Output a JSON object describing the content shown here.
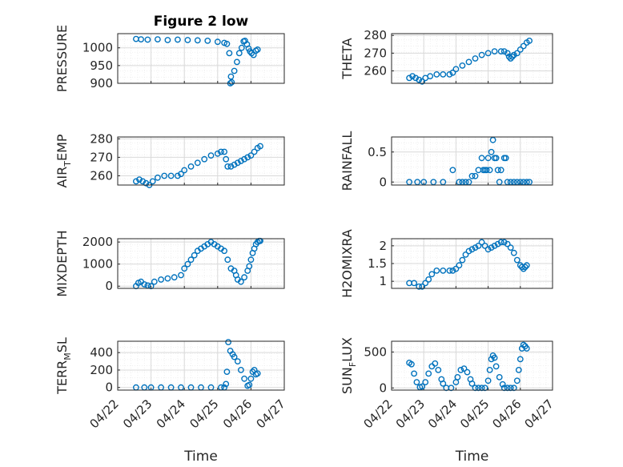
{
  "figure_title": "Figure 2 low",
  "colors": {
    "marker": "#0072BD",
    "axis": "#262626",
    "grid": "#d9d9d9",
    "minor_grid": "#ececec"
  },
  "chart_data": [
    {
      "type": "scatter",
      "ylabel": "PRESSURE",
      "ylabel_sub": "",
      "ylabel_tail": "",
      "ylim": [
        900,
        1040
      ],
      "yticks": [
        900,
        950,
        1000
      ],
      "xlim": [
        "04/22",
        "04/27"
      ],
      "xticks": [
        "04/22",
        "04/23",
        "04/24",
        "04/25",
        "04/26",
        "04/27"
      ],
      "xticklabels_shown": false,
      "xlabel": "",
      "grid": true,
      "marker": "circle",
      "series": [
        {
          "x": [
            0.55,
            0.7,
            0.9,
            1.2,
            1.5,
            1.8,
            2.1,
            2.4,
            2.7,
            3.0,
            3.2,
            3.28,
            3.35,
            3.38,
            3.4,
            3.42,
            3.5,
            3.58,
            3.65,
            3.72,
            3.78,
            3.82,
            3.88,
            3.93,
            3.97,
            4.02,
            4.08,
            4.15,
            4.2
          ],
          "y": [
            1025,
            1024,
            1023,
            1024,
            1022,
            1023,
            1022,
            1021,
            1020,
            1017,
            1014,
            1011,
            985,
            900,
            919,
            903,
            935,
            960,
            985,
            1000,
            1018,
            1020,
            1010,
            998,
            990,
            985,
            980,
            992,
            995
          ]
        }
      ]
    },
    {
      "type": "scatter",
      "ylabel": "THETA",
      "ylabel_sub": "",
      "ylabel_tail": "",
      "ylim": [
        253,
        281
      ],
      "yticks": [
        260,
        270,
        280
      ],
      "xlim": [
        "04/22",
        "04/27"
      ],
      "xticks": [
        "04/22",
        "04/23",
        "04/24",
        "04/25",
        "04/26",
        "04/27"
      ],
      "xticklabels_shown": false,
      "xlabel": "",
      "grid": true,
      "marker": "circle",
      "series": [
        {
          "x": [
            0.55,
            0.65,
            0.75,
            0.85,
            0.95,
            1.05,
            1.2,
            1.4,
            1.6,
            1.8,
            1.9,
            2.0,
            2.2,
            2.4,
            2.6,
            2.8,
            3.0,
            3.2,
            3.4,
            3.5,
            3.6,
            3.65,
            3.7,
            3.75,
            3.8,
            3.9,
            4.0,
            4.1,
            4.2,
            4.28
          ],
          "y": [
            256,
            257,
            256,
            255,
            254,
            256,
            257,
            258,
            258,
            258,
            259,
            261,
            263,
            265,
            267,
            269,
            270,
            271,
            271,
            271,
            270,
            268,
            267,
            268,
            269,
            270,
            272,
            274,
            276,
            277
          ]
        }
      ]
    },
    {
      "type": "scatter",
      "ylabel": "AIR",
      "ylabel_sub": "T",
      "ylabel_tail": "EMP",
      "ylim": [
        255,
        281
      ],
      "yticks": [
        260,
        270,
        280
      ],
      "xlim": [
        "04/22",
        "04/27"
      ],
      "xticks": [
        "04/22",
        "04/23",
        "04/24",
        "04/25",
        "04/26",
        "04/27"
      ],
      "xticklabels_shown": false,
      "xlabel": "",
      "grid": true,
      "marker": "circle",
      "series": [
        {
          "x": [
            0.55,
            0.65,
            0.75,
            0.85,
            0.95,
            1.05,
            1.2,
            1.4,
            1.6,
            1.8,
            1.9,
            2.0,
            2.2,
            2.4,
            2.6,
            2.8,
            3.0,
            3.1,
            3.2,
            3.25,
            3.3,
            3.4,
            3.5,
            3.6,
            3.7,
            3.8,
            3.9,
            4.0,
            4.1,
            4.2,
            4.28
          ],
          "y": [
            257,
            258,
            257,
            256,
            255,
            257,
            259,
            260,
            260,
            260,
            261,
            263,
            265,
            267,
            269,
            271,
            272,
            273,
            273,
            269,
            265,
            265,
            266,
            267,
            268,
            269,
            270,
            271,
            273,
            275,
            276
          ]
        }
      ]
    },
    {
      "type": "scatter",
      "ylabel": "RAINFALL",
      "ylabel_sub": "",
      "ylabel_tail": "",
      "ylim": [
        -0.05,
        0.75
      ],
      "yticks": [
        0,
        0.5
      ],
      "xlim": [
        "04/22",
        "04/27"
      ],
      "xticks": [
        "04/22",
        "04/23",
        "04/24",
        "04/25",
        "04/26",
        "04/27"
      ],
      "xticklabels_shown": false,
      "xlabel": "",
      "grid": true,
      "marker": "circle",
      "series": [
        {
          "x": [
            0.55,
            0.8,
            1.0,
            1.3,
            1.6,
            1.9,
            2.1,
            2.2,
            2.3,
            2.4,
            2.5,
            2.6,
            2.7,
            2.8,
            2.85,
            2.9,
            2.95,
            3.0,
            3.05,
            3.1,
            3.15,
            3.2,
            3.25,
            3.3,
            3.35,
            3.4,
            3.5,
            3.55,
            3.6,
            3.7,
            3.8,
            3.9,
            4.0,
            4.1,
            4.2,
            4.28
          ],
          "y": [
            0,
            0,
            0,
            0,
            0,
            0.2,
            0,
            0,
            0,
            0,
            0.1,
            0.1,
            0.2,
            0.4,
            0.2,
            0.2,
            0.2,
            0.4,
            0.2,
            0.5,
            0.7,
            0.4,
            0.4,
            0.2,
            0,
            0.2,
            0.4,
            0.4,
            0,
            0,
            0,
            0,
            0,
            0,
            0,
            0
          ]
        }
      ]
    },
    {
      "type": "scatter",
      "ylabel": "MIXDEPTH",
      "ylabel_sub": "",
      "ylabel_tail": "",
      "ylim": [
        -100,
        2150
      ],
      "yticks": [
        0,
        1000,
        2000
      ],
      "xlim": [
        "04/22",
        "04/27"
      ],
      "xticks": [
        "04/22",
        "04/23",
        "04/24",
        "04/25",
        "04/26",
        "04/27"
      ],
      "xticklabels_shown": false,
      "xlabel": "",
      "grid": true,
      "marker": "circle",
      "series": [
        {
          "x": [
            0.55,
            0.62,
            0.7,
            0.8,
            0.9,
            1.0,
            1.1,
            1.3,
            1.5,
            1.7,
            1.9,
            2.0,
            2.1,
            2.2,
            2.3,
            2.4,
            2.5,
            2.6,
            2.7,
            2.8,
            2.9,
            3.0,
            3.1,
            3.2,
            3.3,
            3.4,
            3.5,
            3.55,
            3.6,
            3.7,
            3.8,
            3.9,
            3.95,
            4.0,
            4.05,
            4.1,
            4.15,
            4.2,
            4.25,
            4.28
          ],
          "y": [
            0,
            150,
            200,
            80,
            30,
            0,
            200,
            300,
            350,
            400,
            500,
            800,
            1000,
            1200,
            1400,
            1600,
            1700,
            1800,
            1900,
            2000,
            1900,
            1800,
            1700,
            1600,
            1200,
            800,
            700,
            500,
            300,
            200,
            400,
            700,
            900,
            1200,
            1500,
            1700,
            1900,
            2000,
            2050,
            2050
          ]
        }
      ]
    },
    {
      "type": "scatter",
      "ylabel": "H2OMIXRA",
      "ylabel_sub": "",
      "ylabel_tail": "",
      "ylim": [
        0.8,
        2.2
      ],
      "yticks": [
        1,
        1.5,
        2
      ],
      "xlim": [
        "04/22",
        "04/27"
      ],
      "xticks": [
        "04/22",
        "04/23",
        "04/24",
        "04/25",
        "04/26",
        "04/27"
      ],
      "xticklabels_shown": false,
      "xlabel": "",
      "grid": true,
      "marker": "circle",
      "series": [
        {
          "x": [
            0.55,
            0.7,
            0.85,
            0.95,
            1.05,
            1.15,
            1.25,
            1.4,
            1.6,
            1.8,
            1.9,
            2.0,
            2.1,
            2.2,
            2.3,
            2.4,
            2.5,
            2.6,
            2.7,
            2.8,
            2.9,
            3.0,
            3.1,
            3.2,
            3.3,
            3.4,
            3.5,
            3.6,
            3.7,
            3.8,
            3.9,
            4.0,
            4.05,
            4.1,
            4.15,
            4.2
          ],
          "y": [
            0.95,
            0.95,
            0.85,
            0.85,
            0.95,
            1.05,
            1.2,
            1.3,
            1.3,
            1.3,
            1.3,
            1.35,
            1.45,
            1.6,
            1.75,
            1.85,
            1.9,
            1.95,
            2.0,
            2.1,
            2.0,
            1.9,
            1.95,
            2.0,
            2.05,
            2.1,
            2.1,
            2.05,
            1.95,
            1.8,
            1.6,
            1.45,
            1.4,
            1.35,
            1.4,
            1.45
          ]
        }
      ]
    },
    {
      "type": "scatter",
      "ylabel": "TERR",
      "ylabel_sub": "M",
      "ylabel_tail": "SL",
      "ylim": [
        -30,
        530
      ],
      "yticks": [
        0,
        200,
        400
      ],
      "xlim": [
        "04/22",
        "04/27"
      ],
      "xticks": [
        "04/22",
        "04/23",
        "04/24",
        "04/25",
        "04/26",
        "04/27"
      ],
      "xticklabels_shown": true,
      "xlabel": "Time",
      "grid": true,
      "marker": "circle",
      "series": [
        {
          "x": [
            0.55,
            0.8,
            1.0,
            1.3,
            1.6,
            1.9,
            2.2,
            2.5,
            2.8,
            3.1,
            3.2,
            3.25,
            3.28,
            3.32,
            3.38,
            3.45,
            3.5,
            3.6,
            3.7,
            3.8,
            3.9,
            3.95,
            4.0,
            4.05,
            4.1,
            4.15,
            4.2
          ],
          "y": [
            0,
            0,
            0,
            0,
            0,
            0,
            0,
            0,
            0,
            0,
            0,
            40,
            180,
            520,
            420,
            380,
            350,
            300,
            200,
            100,
            20,
            30,
            100,
            180,
            200,
            150,
            160
          ]
        }
      ]
    },
    {
      "type": "scatter",
      "ylabel": "SUN",
      "ylabel_sub": "F",
      "ylabel_tail": "LUX",
      "ylim": [
        -30,
        650
      ],
      "yticks": [
        0,
        500
      ],
      "xlim": [
        "04/22",
        "04/27"
      ],
      "xticks": [
        "04/22",
        "04/23",
        "04/24",
        "04/25",
        "04/26",
        "04/27"
      ],
      "xticklabels_shown": true,
      "xlabel": "Time",
      "grid": true,
      "marker": "circle",
      "series": [
        {
          "x": [
            0.55,
            0.62,
            0.7,
            0.78,
            0.88,
            0.95,
            1.05,
            1.15,
            1.25,
            1.35,
            1.45,
            1.55,
            1.6,
            1.7,
            1.85,
            2.0,
            2.05,
            2.15,
            2.25,
            2.35,
            2.45,
            2.5,
            2.6,
            2.7,
            2.8,
            2.9,
            3.0,
            3.05,
            3.1,
            3.15,
            3.2,
            3.25,
            3.35,
            3.45,
            3.5,
            3.6,
            3.7,
            3.8,
            3.9,
            3.95,
            4.0,
            4.05,
            4.1,
            4.15,
            4.2
          ],
          "y": [
            350,
            330,
            200,
            80,
            10,
            20,
            80,
            200,
            300,
            340,
            250,
            120,
            60,
            0,
            0,
            80,
            150,
            250,
            270,
            220,
            120,
            60,
            0,
            0,
            0,
            0,
            100,
            250,
            400,
            450,
            420,
            300,
            150,
            50,
            0,
            0,
            0,
            0,
            100,
            250,
            400,
            550,
            600,
            580,
            550
          ]
        }
      ]
    }
  ]
}
